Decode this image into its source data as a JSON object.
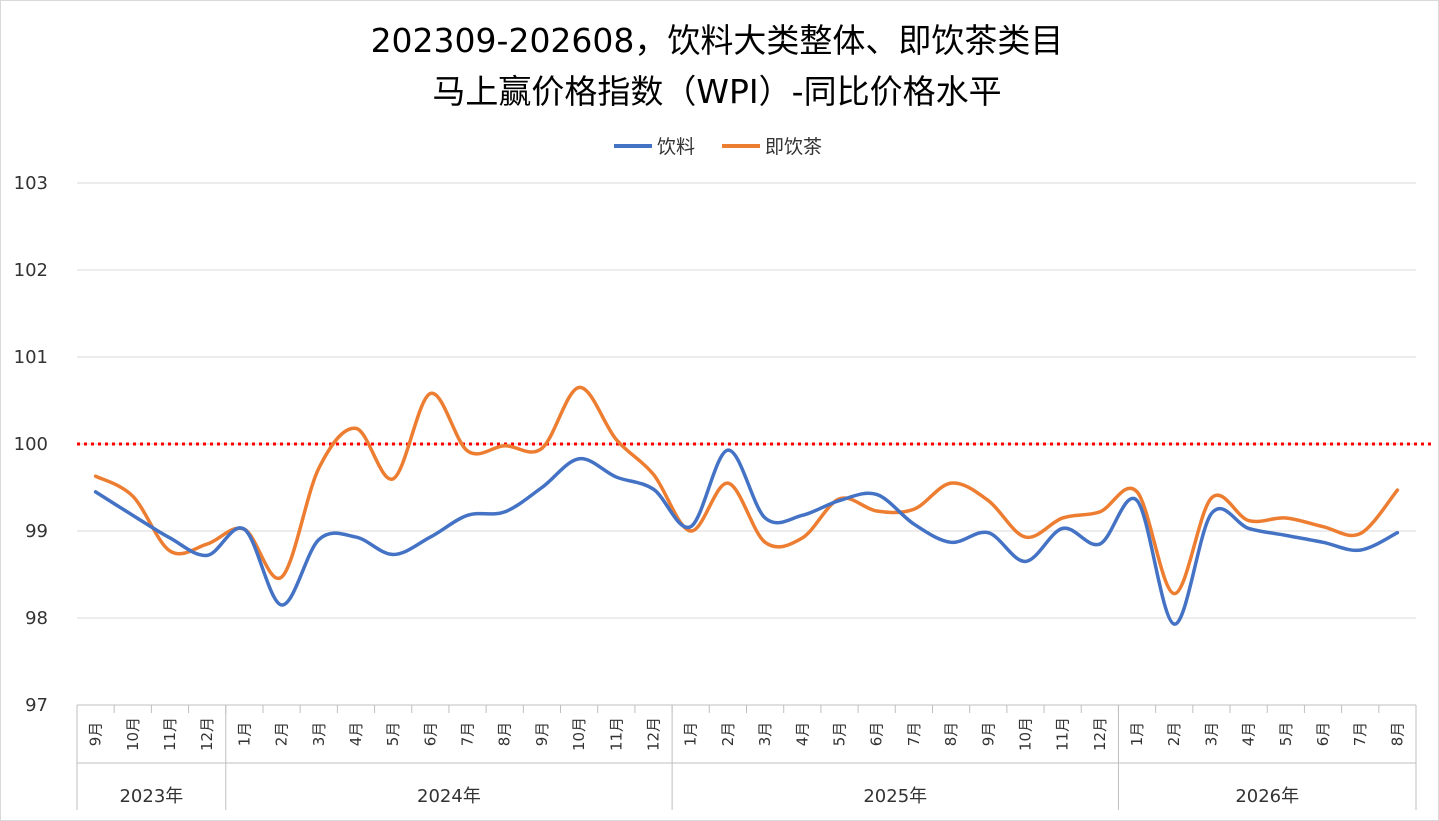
{
  "chart_data": {
    "type": "line",
    "title_lines": [
      "202309-202608，饮料大类整体、即饮茶类目",
      "马上赢价格指数（WPI）-同比价格水平"
    ],
    "ylim": [
      97,
      103
    ],
    "yticks": [
      "97",
      "98",
      "99",
      "100",
      "101",
      "102",
      "103"
    ],
    "reference_line": {
      "value": 100,
      "color": "#ff0000",
      "style": "dotted"
    },
    "legend_position": "top-center",
    "grid": true,
    "months": [
      "9月",
      "10月",
      "11月",
      "12月",
      "1月",
      "2月",
      "3月",
      "4月",
      "5月",
      "6月",
      "7月",
      "8月",
      "9月",
      "10月",
      "11月",
      "12月",
      "1月",
      "2月",
      "3月",
      "4月",
      "5月",
      "6月",
      "7月",
      "8月",
      "9月",
      "10月",
      "11月",
      "12月",
      "1月",
      "2月",
      "3月",
      "4月",
      "5月",
      "6月",
      "7月",
      "8月"
    ],
    "year_groups": [
      {
        "label": "2023年",
        "count": 4
      },
      {
        "label": "2024年",
        "count": 12
      },
      {
        "label": "2025年",
        "count": 12
      },
      {
        "label": "2026年",
        "count": 8
      }
    ],
    "series": [
      {
        "name": "饮料",
        "color": "#4472c4",
        "values": [
          99.45,
          99.18,
          98.92,
          98.72,
          99.02,
          98.15,
          98.9,
          98.93,
          98.73,
          98.93,
          99.18,
          99.22,
          99.5,
          99.83,
          99.62,
          99.48,
          99.05,
          99.93,
          99.15,
          99.18,
          99.35,
          99.42,
          99.08,
          98.87,
          98.98,
          98.65,
          99.03,
          98.85,
          99.35,
          97.93,
          99.2,
          99.03,
          98.95,
          98.87,
          98.78,
          98.98
        ]
      },
      {
        "name": "即饮茶",
        "color": "#ed7d31",
        "values": [
          99.63,
          99.4,
          98.77,
          98.85,
          99.02,
          98.47,
          99.72,
          100.18,
          99.6,
          100.58,
          99.92,
          99.98,
          99.95,
          100.65,
          100.05,
          99.65,
          99.0,
          99.55,
          98.87,
          98.92,
          99.37,
          99.23,
          99.25,
          99.55,
          99.35,
          98.93,
          99.15,
          99.22,
          99.45,
          98.28,
          99.38,
          99.12,
          99.15,
          99.05,
          98.97,
          99.47
        ]
      }
    ]
  }
}
